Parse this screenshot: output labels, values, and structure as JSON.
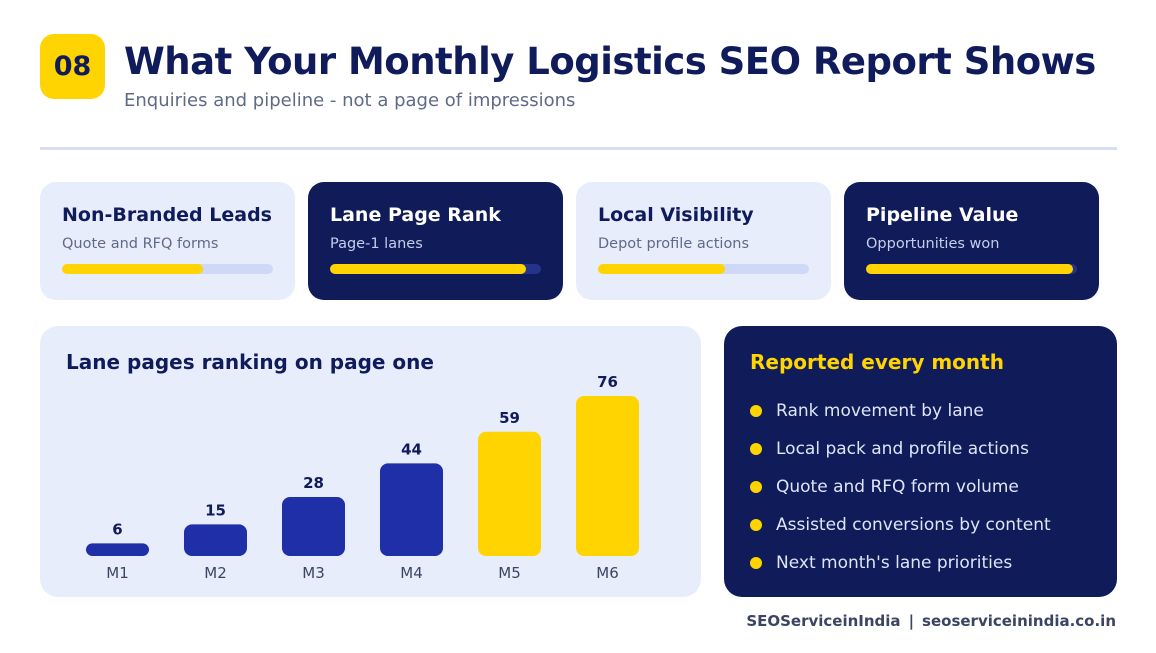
{
  "header": {
    "badge": "08",
    "title": "What Your Monthly Logistics SEO Report Shows",
    "subtitle": "Enquiries and pipeline - not a page of impressions"
  },
  "kpis": [
    {
      "title": "Non-Branded Leads",
      "subtitle": "Quote and RFQ forms",
      "progress": 0.67,
      "theme": "light"
    },
    {
      "title": "Lane Page Rank",
      "subtitle": "Page-1 lanes",
      "progress": 0.93,
      "theme": "dark"
    },
    {
      "title": "Local Visibility",
      "subtitle": "Depot profile actions",
      "progress": 0.6,
      "theme": "light"
    },
    {
      "title": "Pipeline Value",
      "subtitle": "Opportunities won",
      "progress": 0.98,
      "theme": "dark"
    }
  ],
  "chart_data": {
    "type": "bar",
    "title": "Lane pages ranking on page one",
    "categories": [
      "M1",
      "M2",
      "M3",
      "M4",
      "M5",
      "M6"
    ],
    "values": [
      6,
      15,
      28,
      44,
      59,
      76
    ],
    "bar_colors": [
      "#1f2fa8",
      "#1f2fa8",
      "#1f2fa8",
      "#1f2fa8",
      "#ffd400",
      "#ffd400"
    ],
    "ylim": [
      0,
      76
    ],
    "grid": false,
    "data_labels": true
  },
  "reported": {
    "title": "Reported every month",
    "items": [
      "Rank movement by lane",
      "Local pack and profile actions",
      "Quote and RFQ form volume",
      "Assisted conversions by content",
      "Next month's lane priorities"
    ]
  },
  "footer": {
    "brand": "SEOServiceinIndia",
    "separator": "|",
    "url": "seoserviceinindia.co.in"
  },
  "colors": {
    "navy": "#101c59",
    "yellow": "#ffd400",
    "blue": "#1f2fa8",
    "light_bg": "#e8edfc"
  }
}
